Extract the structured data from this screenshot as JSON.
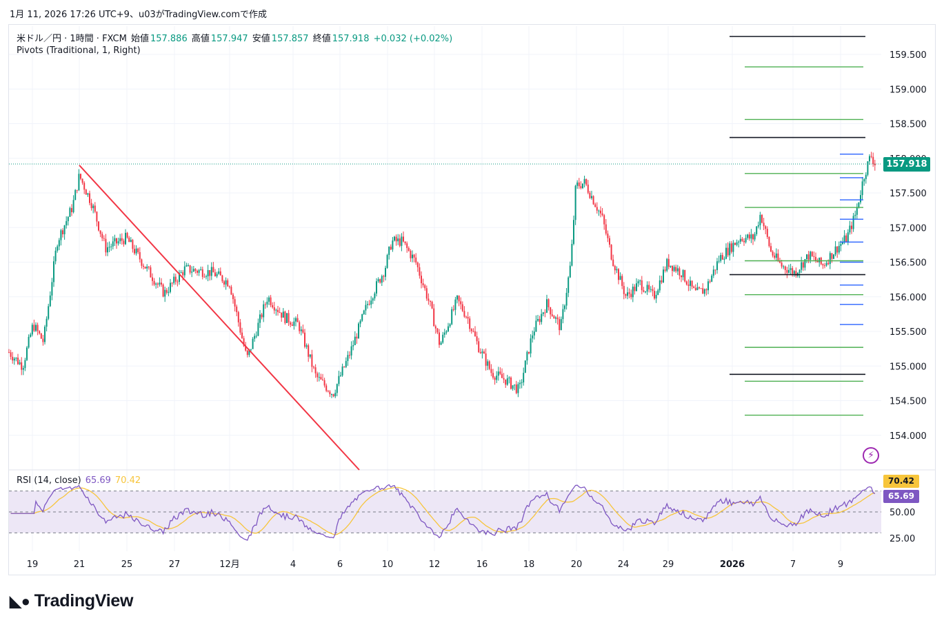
{
  "header": {
    "text": "1月 11, 2026 17:26 UTC+9、u03がTradingView.comで作成"
  },
  "legend": {
    "symbol": "米ドル／円 · 1時間 · FXCM",
    "open_label": "始値",
    "open": "157.886",
    "high_label": "高値",
    "high": "157.947",
    "low_label": "安値",
    "low": "157.857",
    "close_label": "終値",
    "close": "157.918",
    "change": "+0.032 (+0.02%)"
  },
  "pivots_label": "Pivots (Traditional, 1, Right)",
  "rsi_legend": {
    "label": "RSI (14, close)",
    "rsi": "65.69",
    "ma": "70.42"
  },
  "price_tag": "157.918",
  "rsi_tags": {
    "ma": "70.42",
    "rsi": "65.69"
  },
  "brand": {
    "name": "TradingView",
    "logo": "tradingview-logo-icon"
  },
  "colors": {
    "up": "#089981",
    "down": "#f23645",
    "trendline": "#f23645",
    "pivot_green": "#4caf50",
    "pivot_black": "#131722",
    "pivot_blue": "#2962ff",
    "rsi": "#7e57c2",
    "rsi_ma": "#f7c53b",
    "rsi_band": "#ede7f6"
  },
  "chart_data": [
    {
      "type": "candlestick",
      "title": "",
      "price_axis": [
        "159.500",
        "159.000",
        "158.500",
        "158.000",
        "157.500",
        "157.000",
        "156.500",
        "156.000",
        "155.500",
        "155.000",
        "154.500",
        "154.000"
      ],
      "time_axis": [
        "19",
        "21",
        "25",
        "27",
        "12月",
        "4",
        "6",
        "10",
        "12",
        "16",
        "18",
        "20",
        "24",
        "29",
        "2026",
        "7",
        "9"
      ],
      "ylim": [
        153.5,
        159.9
      ],
      "last_price": 157.918,
      "path_keypoints": [
        {
          "x": 0,
          "y": 155.2
        },
        {
          "x": 20,
          "y": 155.0
        },
        {
          "x": 35,
          "y": 155.6
        },
        {
          "x": 50,
          "y": 155.35
        },
        {
          "x": 70,
          "y": 156.8
        },
        {
          "x": 92,
          "y": 157.3
        },
        {
          "x": 102,
          "y": 157.75
        },
        {
          "x": 120,
          "y": 157.35
        },
        {
          "x": 140,
          "y": 156.7
        },
        {
          "x": 170,
          "y": 156.85
        },
        {
          "x": 200,
          "y": 156.4
        },
        {
          "x": 225,
          "y": 156.05
        },
        {
          "x": 255,
          "y": 156.4
        },
        {
          "x": 295,
          "y": 156.35
        },
        {
          "x": 320,
          "y": 156.2
        },
        {
          "x": 345,
          "y": 155.1
        },
        {
          "x": 375,
          "y": 156.0
        },
        {
          "x": 400,
          "y": 155.7
        },
        {
          "x": 420,
          "y": 155.6
        },
        {
          "x": 445,
          "y": 154.85
        },
        {
          "x": 470,
          "y": 154.6
        },
        {
          "x": 495,
          "y": 155.2
        },
        {
          "x": 520,
          "y": 155.9
        },
        {
          "x": 545,
          "y": 156.4
        },
        {
          "x": 555,
          "y": 156.8
        },
        {
          "x": 570,
          "y": 156.8
        },
        {
          "x": 590,
          "y": 156.5
        },
        {
          "x": 610,
          "y": 155.9
        },
        {
          "x": 625,
          "y": 155.3
        },
        {
          "x": 650,
          "y": 155.95
        },
        {
          "x": 665,
          "y": 155.7
        },
        {
          "x": 680,
          "y": 155.3
        },
        {
          "x": 700,
          "y": 154.9
        },
        {
          "x": 720,
          "y": 154.8
        },
        {
          "x": 740,
          "y": 154.65
        },
        {
          "x": 760,
          "y": 155.5
        },
        {
          "x": 780,
          "y": 155.9
        },
        {
          "x": 800,
          "y": 155.55
        },
        {
          "x": 815,
          "y": 156.5
        },
        {
          "x": 822,
          "y": 157.6
        },
        {
          "x": 835,
          "y": 157.65
        },
        {
          "x": 860,
          "y": 157.15
        },
        {
          "x": 875,
          "y": 156.55
        },
        {
          "x": 895,
          "y": 156.0
        },
        {
          "x": 915,
          "y": 156.2
        },
        {
          "x": 935,
          "y": 156.0
        },
        {
          "x": 955,
          "y": 156.5
        },
        {
          "x": 975,
          "y": 156.35
        },
        {
          "x": 995,
          "y": 156.05
        },
        {
          "x": 1010,
          "y": 156.1
        },
        {
          "x": 1030,
          "y": 156.55
        },
        {
          "x": 1060,
          "y": 156.85
        },
        {
          "x": 1080,
          "y": 156.85
        },
        {
          "x": 1090,
          "y": 157.2
        },
        {
          "x": 1105,
          "y": 156.65
        },
        {
          "x": 1120,
          "y": 156.45
        },
        {
          "x": 1140,
          "y": 156.35
        },
        {
          "x": 1160,
          "y": 156.6
        },
        {
          "x": 1180,
          "y": 156.45
        },
        {
          "x": 1200,
          "y": 156.7
        },
        {
          "x": 1215,
          "y": 156.85
        },
        {
          "x": 1228,
          "y": 157.2
        },
        {
          "x": 1240,
          "y": 157.75
        },
        {
          "x": 1250,
          "y": 158.05
        },
        {
          "x": 1256,
          "y": 157.92
        }
      ],
      "trendline": {
        "from": [
          102,
          157.9
        ],
        "to": [
          508,
          153.5
        ]
      },
      "pivot_levels": [
        {
          "group": "wide-black",
          "value": 159.76,
          "x0": 1058,
          "x1": 1255
        },
        {
          "group": "wide-black",
          "value": 158.3,
          "x0": 1058,
          "x1": 1255
        },
        {
          "group": "wide-black",
          "value": 156.32,
          "x0": 1058,
          "x1": 1255
        },
        {
          "group": "wide-black",
          "value": 154.88,
          "x0": 1058,
          "x1": 1255
        },
        {
          "group": "green",
          "value": 159.32,
          "x0": 1080,
          "x1": 1252
        },
        {
          "group": "green",
          "value": 158.56,
          "x0": 1080,
          "x1": 1252
        },
        {
          "group": "green",
          "value": 157.78,
          "x0": 1080,
          "x1": 1252
        },
        {
          "group": "green",
          "value": 157.29,
          "x0": 1080,
          "x1": 1252
        },
        {
          "group": "green",
          "value": 156.52,
          "x0": 1080,
          "x1": 1252
        },
        {
          "group": "green",
          "value": 156.03,
          "x0": 1080,
          "x1": 1252
        },
        {
          "group": "green",
          "value": 155.27,
          "x0": 1080,
          "x1": 1252
        },
        {
          "group": "green",
          "value": 154.78,
          "x0": 1080,
          "x1": 1252
        },
        {
          "group": "green",
          "value": 154.29,
          "x0": 1080,
          "x1": 1252
        },
        {
          "group": "blue",
          "value": 158.06,
          "x0": 1218,
          "x1": 1252
        },
        {
          "group": "blue",
          "value": 157.72,
          "x0": 1218,
          "x1": 1252
        },
        {
          "group": "blue",
          "value": 157.4,
          "x0": 1218,
          "x1": 1252
        },
        {
          "group": "blue",
          "value": 157.12,
          "x0": 1218,
          "x1": 1252
        },
        {
          "group": "blue",
          "value": 156.79,
          "x0": 1218,
          "x1": 1252
        },
        {
          "group": "blue",
          "value": 156.5,
          "x0": 1218,
          "x1": 1252
        },
        {
          "group": "blue",
          "value": 156.17,
          "x0": 1218,
          "x1": 1252
        },
        {
          "group": "blue",
          "value": 155.89,
          "x0": 1218,
          "x1": 1252
        },
        {
          "group": "blue",
          "value": 155.6,
          "x0": 1218,
          "x1": 1252
        }
      ]
    },
    {
      "type": "line",
      "title": "RSI (14, close)",
      "price_axis": [
        "70.42",
        "65.69",
        "50.00",
        "25.00"
      ],
      "bands": {
        "upper": 70,
        "middle": 50,
        "lower": 30
      },
      "ylim": [
        15,
        85
      ],
      "last_rsi": 65.69,
      "last_ma": 70.42
    }
  ]
}
